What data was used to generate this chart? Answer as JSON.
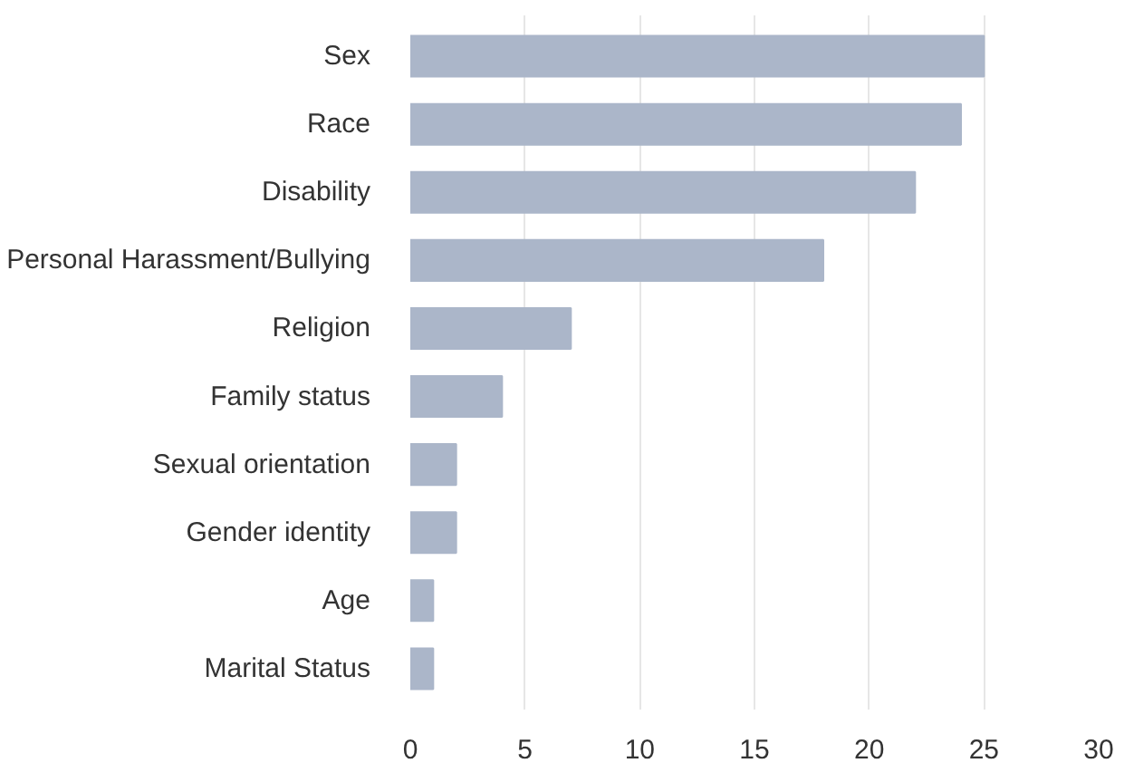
{
  "chart_data": {
    "type": "bar",
    "orientation": "horizontal",
    "categories": [
      "Sex",
      "Race",
      "Disability",
      "Personal Harassment/Bullying",
      "Religion",
      "Family status",
      "Sexual orientation",
      "Gender identity",
      "Age",
      "Marital Status"
    ],
    "values": [
      25,
      24,
      22,
      18,
      7,
      4,
      2,
      2,
      1,
      1
    ],
    "color": "#abb6c9",
    "xlim": [
      0,
      30
    ],
    "xticks": [
      0,
      5,
      10,
      15,
      20,
      25,
      30
    ],
    "grid": "x"
  }
}
